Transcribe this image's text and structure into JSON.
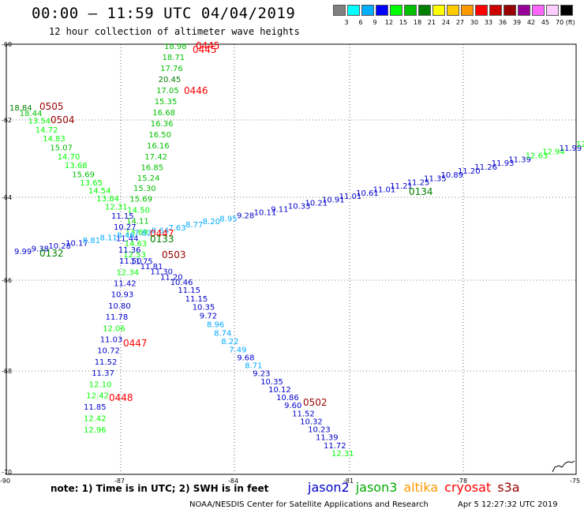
{
  "header": {
    "title": "00:00 – 11:59 UTC 04/04/2019",
    "subtitle": "12 hour collection of altimeter wave heights"
  },
  "colorbar": {
    "colors": [
      "#808080",
      "#00ffff",
      "#00b0ff",
      "#0000ff",
      "#00ff00",
      "#00c000",
      "#008000",
      "#ffff00",
      "#ffcc00",
      "#ff9900",
      "#ff0000",
      "#cc0000",
      "#990000",
      "#990099",
      "#ff66ff",
      "#ffccff",
      "#000000"
    ],
    "labels": [
      "3",
      "6",
      "9",
      "12",
      "15",
      "18",
      "21",
      "24",
      "27",
      "30",
      "33",
      "36",
      "39",
      "42",
      "45",
      "70 (ft)"
    ]
  },
  "axes": {
    "lat_labels": [
      "-60",
      "-62",
      "-64",
      "-66",
      "-68",
      "-70"
    ],
    "lon_labels": [
      "-90",
      "-87",
      "-84",
      "-81",
      "-78",
      "-75"
    ]
  },
  "tracks": [
    {
      "satellite": "jason3",
      "pass": "0445",
      "values": [
        {
          "text": "18.98",
          "color": "#00c000"
        },
        {
          "text": "18.71",
          "color": "#00c000"
        },
        {
          "text": "17.76",
          "color": "#00c000"
        },
        {
          "text": "20.45",
          "color": "#008000"
        },
        {
          "text": "17.05",
          "color": "#00c000"
        },
        {
          "text": "15.35",
          "color": "#00c000"
        },
        {
          "text": "16.68",
          "color": "#00c000"
        },
        {
          "text": "16.36",
          "color": "#00c000"
        },
        {
          "text": "16.50",
          "color": "#00c000"
        },
        {
          "text": "16.16",
          "color": "#00c000"
        },
        {
          "text": "17.42",
          "color": "#00c000"
        },
        {
          "text": "16.85",
          "color": "#00c000"
        },
        {
          "text": "15.24",
          "color": "#00c000"
        },
        {
          "text": "15.30",
          "color": "#00c000"
        },
        {
          "text": "15.69",
          "color": "#00c000"
        },
        {
          "text": "14.50",
          "color": "#00ff00"
        },
        {
          "text": "14.11",
          "color": "#00c000"
        },
        {
          "text": "13.69",
          "color": "#00ff00"
        },
        {
          "text": "14.63",
          "color": "#00ff00"
        },
        {
          "text": "12.53",
          "color": "#00ff00"
        },
        {
          "text": "11.75",
          "color": "#0000cc"
        },
        {
          "text": "11.81",
          "color": "#0000cc"
        },
        {
          "text": "11.30",
          "color": "#0000cc"
        },
        {
          "text": "11.20",
          "color": "#0000cc"
        },
        {
          "text": "10.46",
          "color": "#0000cc"
        },
        {
          "text": "11.15",
          "color": "#0000cc"
        },
        {
          "text": "11.15",
          "color": "#0000cc"
        },
        {
          "text": "10.35",
          "color": "#0000cc"
        },
        {
          "text": "9.72",
          "color": "#0000cc"
        },
        {
          "text": "8.96",
          "color": "#00aaff"
        },
        {
          "text": "8.74",
          "color": "#00aaff"
        },
        {
          "text": "8.22",
          "color": "#00aaff"
        },
        {
          "text": "7.49",
          "color": "#00aaff"
        },
        {
          "text": "9.68",
          "color": "#0000cc"
        },
        {
          "text": "8.71",
          "color": "#00aaff"
        },
        {
          "text": "9.23",
          "color": "#0000cc"
        },
        {
          "text": "10.35",
          "color": "#0000cc"
        },
        {
          "text": "10.12",
          "color": "#0000cc"
        },
        {
          "text": "10.86",
          "color": "#0000cc"
        },
        {
          "text": "9.60",
          "color": "#0000cc"
        },
        {
          "text": "11.52",
          "color": "#0000cc"
        },
        {
          "text": "10.32",
          "color": "#0000cc"
        },
        {
          "text": "10.23",
          "color": "#0000cc"
        },
        {
          "text": "11.39",
          "color": "#0000cc"
        },
        {
          "text": "11.72",
          "color": "#0000cc"
        },
        {
          "text": "12.31",
          "color": "#00ff00"
        }
      ]
    },
    {
      "satellite": "jason3",
      "pass": "0505",
      "values": [
        {
          "text": "18.84",
          "color": "#008000"
        },
        {
          "text": "18.44",
          "color": "#00c000"
        },
        {
          "text": "13.54",
          "color": "#00ff00"
        },
        {
          "text": "14.72",
          "color": "#00ff00"
        },
        {
          "text": "14.83",
          "color": "#00ff00"
        },
        {
          "text": "15.07",
          "color": "#00c000"
        },
        {
          "text": "14.70",
          "color": "#00ff00"
        },
        {
          "text": "13.68",
          "color": "#00ff00"
        },
        {
          "text": "15.69",
          "color": "#00c000"
        },
        {
          "text": "13.65",
          "color": "#00ff00"
        },
        {
          "text": "14.54",
          "color": "#00ff00"
        },
        {
          "text": "13.84",
          "color": "#00ff00"
        },
        {
          "text": "12.31",
          "color": "#00ff00"
        },
        {
          "text": "11.15",
          "color": "#0000cc"
        },
        {
          "text": "10.27",
          "color": "#0000cc"
        },
        {
          "text": "11.44",
          "color": "#0000cc"
        },
        {
          "text": "11.36",
          "color": "#0000cc"
        },
        {
          "text": "11.50",
          "color": "#0000cc"
        },
        {
          "text": "12.34",
          "color": "#00ff00"
        },
        {
          "text": "11.42",
          "color": "#0000cc"
        },
        {
          "text": "10.93",
          "color": "#0000cc"
        },
        {
          "text": "10.80",
          "color": "#0000cc"
        },
        {
          "text": "11.78",
          "color": "#0000cc"
        },
        {
          "text": "12.06",
          "color": "#00ff00"
        },
        {
          "text": "11.03",
          "color": "#0000cc"
        },
        {
          "text": "10.72",
          "color": "#0000cc"
        },
        {
          "text": "11.52",
          "color": "#0000cc"
        },
        {
          "text": "11.37",
          "color": "#0000cc"
        },
        {
          "text": "12.10",
          "color": "#00ff00"
        },
        {
          "text": "12.42",
          "color": "#00ff00"
        },
        {
          "text": "11.85",
          "color": "#0000cc"
        },
        {
          "text": "12.42",
          "color": "#00ff00"
        },
        {
          "text": "12.96",
          "color": "#00ff00"
        }
      ]
    },
    {
      "satellite": "jason3",
      "pass": "0132",
      "values": [
        {
          "text": "9.99",
          "color": "#0000cc"
        },
        {
          "text": "9.38",
          "color": "#0000cc"
        },
        {
          "text": "10.28",
          "color": "#0000cc"
        },
        {
          "text": "10.17",
          "color": "#0000cc"
        },
        {
          "text": "8.81",
          "color": "#00aaff"
        },
        {
          "text": "8.11",
          "color": "#00aaff"
        },
        {
          "text": "8.46",
          "color": "#00aaff"
        },
        {
          "text": "7.82",
          "color": "#00aaff"
        },
        {
          "text": "8.64",
          "color": "#00aaff"
        },
        {
          "text": "7.63",
          "color": "#00aaff"
        },
        {
          "text": "8.77",
          "color": "#00aaff"
        },
        {
          "text": "8.20",
          "color": "#00aaff"
        },
        {
          "text": "8.95",
          "color": "#00aaff"
        },
        {
          "text": "9.28",
          "color": "#0000cc"
        },
        {
          "text": "10.11",
          "color": "#0000cc"
        },
        {
          "text": "9.11",
          "color": "#0000cc"
        },
        {
          "text": "10.33",
          "color": "#0000cc"
        },
        {
          "text": "10.21",
          "color": "#0000cc"
        },
        {
          "text": "10.91",
          "color": "#0000cc"
        },
        {
          "text": "11.01",
          "color": "#0000cc"
        },
        {
          "text": "10.61",
          "color": "#0000cc"
        },
        {
          "text": "11.01",
          "color": "#0000cc"
        },
        {
          "text": "11.21",
          "color": "#0000cc"
        },
        {
          "text": "11.25",
          "color": "#0000cc"
        },
        {
          "text": "11.35",
          "color": "#0000cc"
        },
        {
          "text": "10.89",
          "color": "#0000cc"
        },
        {
          "text": "11.20",
          "color": "#0000cc"
        },
        {
          "text": "11.26",
          "color": "#0000cc"
        },
        {
          "text": "11.93",
          "color": "#0000cc"
        },
        {
          "text": "11.39",
          "color": "#0000cc"
        },
        {
          "text": "12.63",
          "color": "#00ff00"
        },
        {
          "text": "12.94",
          "color": "#00ff00"
        },
        {
          "text": "11.99",
          "color": "#0000cc"
        },
        {
          "text": "12.21",
          "color": "#00ff00"
        }
      ]
    }
  ],
  "pass_labels": [
    {
      "text": "0445",
      "color": "#ff0000"
    },
    {
      "text": "0445",
      "color": "#ff0000"
    },
    {
      "text": "0446",
      "color": "#ff0000"
    },
    {
      "text": "0505",
      "color": "#990000"
    },
    {
      "text": "0504",
      "color": "#990000"
    },
    {
      "text": "0134",
      "color": "#008000"
    },
    {
      "text": "0447",
      "color": "#ff0000"
    },
    {
      "text": "0133",
      "color": "#008000"
    },
    {
      "text": "0503",
      "color": "#990000"
    },
    {
      "text": "0132",
      "color": "#008000"
    },
    {
      "text": "0447",
      "color": "#ff0000"
    },
    {
      "text": "0448",
      "color": "#ff0000"
    },
    {
      "text": "0502",
      "color": "#990000"
    }
  ],
  "footer": {
    "note": "note: 1) Time is in UTC; 2) SWH is in feet",
    "legend": [
      {
        "name": "jason2",
        "color": "#0000cc"
      },
      {
        "name": "jason3",
        "color": "#00aa00"
      },
      {
        "name": "altika",
        "color": "#ff9900"
      },
      {
        "name": "cryosat",
        "color": "#ff0000"
      },
      {
        "name": "s3a",
        "color": "#990000"
      }
    ],
    "credit": "NOAA/NESDIS Center for Satellite Applications and Research",
    "timestamp": "Apr  5 12:27:32 UTC 2019"
  }
}
